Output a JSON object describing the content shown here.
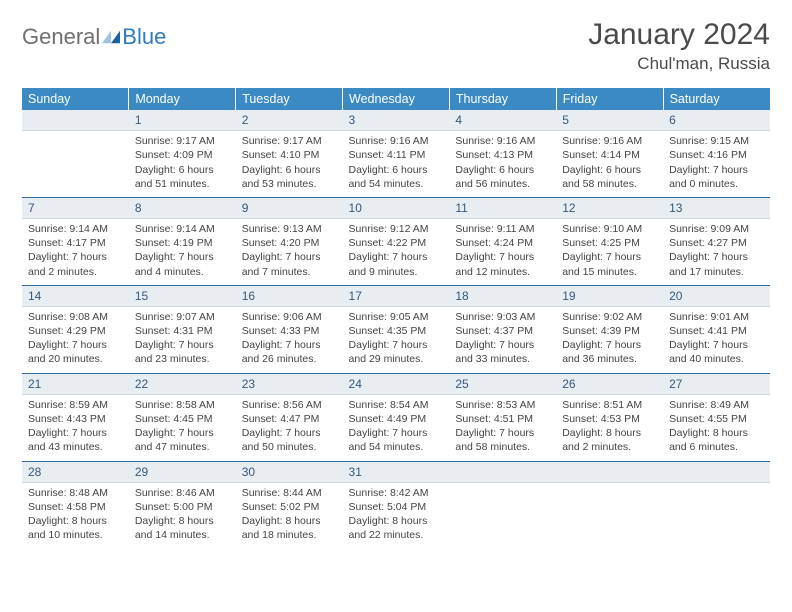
{
  "brand": {
    "general": "General",
    "blue": "Blue"
  },
  "header": {
    "month_title": "January 2024",
    "location": "Chul'man, Russia"
  },
  "colors": {
    "header_bg": "#3b8ac4",
    "daynum_bg": "#e8edf1",
    "rule": "#2f6fa3",
    "logo_gray": "#6f6f6f",
    "logo_blue": "#2f7bbf"
  },
  "day_names": [
    "Sunday",
    "Monday",
    "Tuesday",
    "Wednesday",
    "Thursday",
    "Friday",
    "Saturday"
  ],
  "weeks": [
    [
      {
        "n": "",
        "sr": "",
        "ss": "",
        "dl": ""
      },
      {
        "n": "1",
        "sr": "Sunrise: 9:17 AM",
        "ss": "Sunset: 4:09 PM",
        "dl": "Daylight: 6 hours and 51 minutes."
      },
      {
        "n": "2",
        "sr": "Sunrise: 9:17 AM",
        "ss": "Sunset: 4:10 PM",
        "dl": "Daylight: 6 hours and 53 minutes."
      },
      {
        "n": "3",
        "sr": "Sunrise: 9:16 AM",
        "ss": "Sunset: 4:11 PM",
        "dl": "Daylight: 6 hours and 54 minutes."
      },
      {
        "n": "4",
        "sr": "Sunrise: 9:16 AM",
        "ss": "Sunset: 4:13 PM",
        "dl": "Daylight: 6 hours and 56 minutes."
      },
      {
        "n": "5",
        "sr": "Sunrise: 9:16 AM",
        "ss": "Sunset: 4:14 PM",
        "dl": "Daylight: 6 hours and 58 minutes."
      },
      {
        "n": "6",
        "sr": "Sunrise: 9:15 AM",
        "ss": "Sunset: 4:16 PM",
        "dl": "Daylight: 7 hours and 0 minutes."
      }
    ],
    [
      {
        "n": "7",
        "sr": "Sunrise: 9:14 AM",
        "ss": "Sunset: 4:17 PM",
        "dl": "Daylight: 7 hours and 2 minutes."
      },
      {
        "n": "8",
        "sr": "Sunrise: 9:14 AM",
        "ss": "Sunset: 4:19 PM",
        "dl": "Daylight: 7 hours and 4 minutes."
      },
      {
        "n": "9",
        "sr": "Sunrise: 9:13 AM",
        "ss": "Sunset: 4:20 PM",
        "dl": "Daylight: 7 hours and 7 minutes."
      },
      {
        "n": "10",
        "sr": "Sunrise: 9:12 AM",
        "ss": "Sunset: 4:22 PM",
        "dl": "Daylight: 7 hours and 9 minutes."
      },
      {
        "n": "11",
        "sr": "Sunrise: 9:11 AM",
        "ss": "Sunset: 4:24 PM",
        "dl": "Daylight: 7 hours and 12 minutes."
      },
      {
        "n": "12",
        "sr": "Sunrise: 9:10 AM",
        "ss": "Sunset: 4:25 PM",
        "dl": "Daylight: 7 hours and 15 minutes."
      },
      {
        "n": "13",
        "sr": "Sunrise: 9:09 AM",
        "ss": "Sunset: 4:27 PM",
        "dl": "Daylight: 7 hours and 17 minutes."
      }
    ],
    [
      {
        "n": "14",
        "sr": "Sunrise: 9:08 AM",
        "ss": "Sunset: 4:29 PM",
        "dl": "Daylight: 7 hours and 20 minutes."
      },
      {
        "n": "15",
        "sr": "Sunrise: 9:07 AM",
        "ss": "Sunset: 4:31 PM",
        "dl": "Daylight: 7 hours and 23 minutes."
      },
      {
        "n": "16",
        "sr": "Sunrise: 9:06 AM",
        "ss": "Sunset: 4:33 PM",
        "dl": "Daylight: 7 hours and 26 minutes."
      },
      {
        "n": "17",
        "sr": "Sunrise: 9:05 AM",
        "ss": "Sunset: 4:35 PM",
        "dl": "Daylight: 7 hours and 29 minutes."
      },
      {
        "n": "18",
        "sr": "Sunrise: 9:03 AM",
        "ss": "Sunset: 4:37 PM",
        "dl": "Daylight: 7 hours and 33 minutes."
      },
      {
        "n": "19",
        "sr": "Sunrise: 9:02 AM",
        "ss": "Sunset: 4:39 PM",
        "dl": "Daylight: 7 hours and 36 minutes."
      },
      {
        "n": "20",
        "sr": "Sunrise: 9:01 AM",
        "ss": "Sunset: 4:41 PM",
        "dl": "Daylight: 7 hours and 40 minutes."
      }
    ],
    [
      {
        "n": "21",
        "sr": "Sunrise: 8:59 AM",
        "ss": "Sunset: 4:43 PM",
        "dl": "Daylight: 7 hours and 43 minutes."
      },
      {
        "n": "22",
        "sr": "Sunrise: 8:58 AM",
        "ss": "Sunset: 4:45 PM",
        "dl": "Daylight: 7 hours and 47 minutes."
      },
      {
        "n": "23",
        "sr": "Sunrise: 8:56 AM",
        "ss": "Sunset: 4:47 PM",
        "dl": "Daylight: 7 hours and 50 minutes."
      },
      {
        "n": "24",
        "sr": "Sunrise: 8:54 AM",
        "ss": "Sunset: 4:49 PM",
        "dl": "Daylight: 7 hours and 54 minutes."
      },
      {
        "n": "25",
        "sr": "Sunrise: 8:53 AM",
        "ss": "Sunset: 4:51 PM",
        "dl": "Daylight: 7 hours and 58 minutes."
      },
      {
        "n": "26",
        "sr": "Sunrise: 8:51 AM",
        "ss": "Sunset: 4:53 PM",
        "dl": "Daylight: 8 hours and 2 minutes."
      },
      {
        "n": "27",
        "sr": "Sunrise: 8:49 AM",
        "ss": "Sunset: 4:55 PM",
        "dl": "Daylight: 8 hours and 6 minutes."
      }
    ],
    [
      {
        "n": "28",
        "sr": "Sunrise: 8:48 AM",
        "ss": "Sunset: 4:58 PM",
        "dl": "Daylight: 8 hours and 10 minutes."
      },
      {
        "n": "29",
        "sr": "Sunrise: 8:46 AM",
        "ss": "Sunset: 5:00 PM",
        "dl": "Daylight: 8 hours and 14 minutes."
      },
      {
        "n": "30",
        "sr": "Sunrise: 8:44 AM",
        "ss": "Sunset: 5:02 PM",
        "dl": "Daylight: 8 hours and 18 minutes."
      },
      {
        "n": "31",
        "sr": "Sunrise: 8:42 AM",
        "ss": "Sunset: 5:04 PM",
        "dl": "Daylight: 8 hours and 22 minutes."
      },
      {
        "n": "",
        "sr": "",
        "ss": "",
        "dl": ""
      },
      {
        "n": "",
        "sr": "",
        "ss": "",
        "dl": ""
      },
      {
        "n": "",
        "sr": "",
        "ss": "",
        "dl": ""
      }
    ]
  ]
}
